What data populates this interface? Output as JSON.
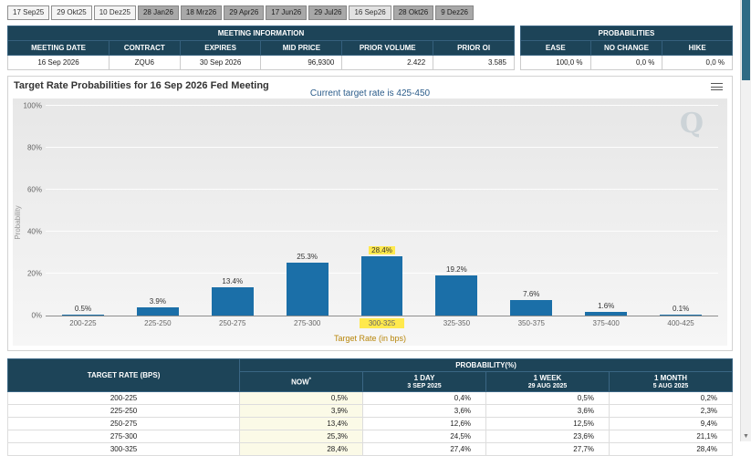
{
  "tabs": [
    {
      "label": "17 Sep25",
      "state": "light"
    },
    {
      "label": "29 Okt25",
      "state": "light"
    },
    {
      "label": "10 Dez25",
      "state": "light"
    },
    {
      "label": "28 Jan26",
      "state": "dark"
    },
    {
      "label": "18 Mrz26",
      "state": "dark"
    },
    {
      "label": "29 Apr26",
      "state": "dark"
    },
    {
      "label": "17 Jun26",
      "state": "dark"
    },
    {
      "label": "29 Jul26",
      "state": "dark"
    },
    {
      "label": "16 Sep26",
      "state": "selected"
    },
    {
      "label": "28 Okt26",
      "state": "dark"
    },
    {
      "label": "9 Dez26",
      "state": "dark"
    }
  ],
  "meeting_info": {
    "title": "MEETING INFORMATION",
    "headers": [
      "MEETING DATE",
      "CONTRACT",
      "EXPIRES",
      "MID PRICE",
      "PRIOR VOLUME",
      "PRIOR OI"
    ],
    "values": [
      "16 Sep 2026",
      "ZQU6",
      "30 Sep 2026",
      "96,9300",
      "2.422",
      "3.585"
    ]
  },
  "probabilities": {
    "title": "PROBABILITIES",
    "headers": [
      "EASE",
      "NO CHANGE",
      "HIKE"
    ],
    "values": [
      "100,0 %",
      "0,0 %",
      "0,0 %"
    ]
  },
  "chart_data": {
    "type": "bar",
    "title": "Target Rate Probabilities for 16 Sep 2026 Fed Meeting",
    "subtitle": "Current target rate is 425-450",
    "xlabel": "Target Rate (in bps)",
    "ylabel": "Probability",
    "ylim": [
      0,
      100
    ],
    "yticks": [
      0,
      20,
      40,
      60,
      80,
      100
    ],
    "ytick_labels": [
      "0%",
      "20%",
      "40%",
      "60%",
      "80%",
      "100%"
    ],
    "categories": [
      "200-225",
      "225-250",
      "250-275",
      "275-300",
      "300-325",
      "325-350",
      "350-375",
      "375-400",
      "400-425"
    ],
    "values": [
      0.5,
      3.9,
      13.4,
      25.3,
      28.4,
      19.2,
      7.6,
      1.6,
      0.1
    ],
    "value_labels": [
      "0.5%",
      "3.9%",
      "13.4%",
      "25.3%",
      "28.4%",
      "19.2%",
      "7.6%",
      "1.6%",
      "0.1%"
    ],
    "highlighted_category": "300-325",
    "grid": true,
    "legend": "none",
    "watermark": "Q",
    "colors": {
      "bar": "#1b6fa8",
      "highlight": "#ffe94d",
      "subtitle": "#2b5c8a",
      "xlabel": "#b8860b"
    }
  },
  "bottom_table": {
    "rate_header": "TARGET RATE (BPS)",
    "group_header": "PROBABILITY(%)",
    "columns": [
      {
        "label": "NOW",
        "sup": "*",
        "sub": ""
      },
      {
        "label": "1 DAY",
        "sub": "3 SEP 2025"
      },
      {
        "label": "1 WEEK",
        "sub": "29 AUG 2025"
      },
      {
        "label": "1 MONTH",
        "sub": "5 AUG 2025"
      }
    ],
    "rows": [
      {
        "rate": "200-225",
        "values": [
          "0,5%",
          "0,4%",
          "0,5%",
          "0,2%"
        ]
      },
      {
        "rate": "225-250",
        "values": [
          "3,9%",
          "3,6%",
          "3,6%",
          "2,3%"
        ]
      },
      {
        "rate": "250-275",
        "values": [
          "13,4%",
          "12,6%",
          "12,5%",
          "9,4%"
        ]
      },
      {
        "rate": "275-300",
        "values": [
          "25,3%",
          "24,5%",
          "23,6%",
          "21,1%"
        ]
      },
      {
        "rate": "300-325",
        "values": [
          "28,4%",
          "27,4%",
          "27,7%",
          "28,4%"
        ]
      }
    ]
  },
  "colors": {
    "header_bg": "#1d4458",
    "tab_dark": "#a8a8a8",
    "now_col_bg": "#fbfae7"
  },
  "scrollbar": {
    "down_arrow": "▼"
  }
}
